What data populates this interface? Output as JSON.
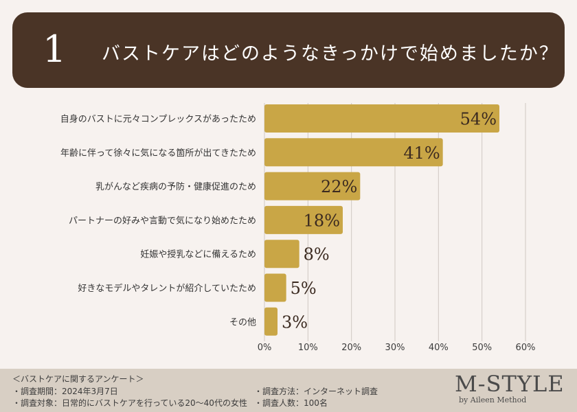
{
  "banner": {
    "number": "1",
    "question": "バストケアはどのようなきっかけで始めましたか？"
  },
  "chart_data": {
    "type": "bar",
    "orientation": "horizontal",
    "categories": [
      "自身のバストに元々コンプレックスがあったため",
      "年齢に伴って徐々に気になる箇所が出てきたため",
      "乳がんなど疾病の予防・健康促進のため",
      "パートナーの好みや言動で気になり始めたため",
      "妊娠や授乳などに備えるため",
      "好きなモデルやタレントが紹介していたため",
      "その他"
    ],
    "values": [
      54,
      41,
      22,
      18,
      8,
      5,
      3
    ],
    "value_labels": [
      "54%",
      "41%",
      "22%",
      "18%",
      "8%",
      "5%",
      "3%"
    ],
    "xlim": [
      0,
      60
    ],
    "xticks": [
      0,
      10,
      20,
      30,
      40,
      50,
      60
    ],
    "xtick_labels": [
      "0%",
      "10%",
      "20%",
      "30%",
      "40%",
      "50%",
      "60%"
    ],
    "grid": true,
    "bar_color": "#c9a646",
    "title": "",
    "xlabel": "",
    "ylabel": ""
  },
  "footer": {
    "survey_title": "＜バストケアに関するアンケート＞",
    "period": "・調査期間：2024年3月7日",
    "target": "・調査対象：日常的にバストケアを行っている20～40代の女性",
    "method": "・調査方法：インターネット調査",
    "count": "・調査人数：100名"
  },
  "brand": {
    "name": "M-STYLE",
    "tagline": "by Aileen Method"
  }
}
